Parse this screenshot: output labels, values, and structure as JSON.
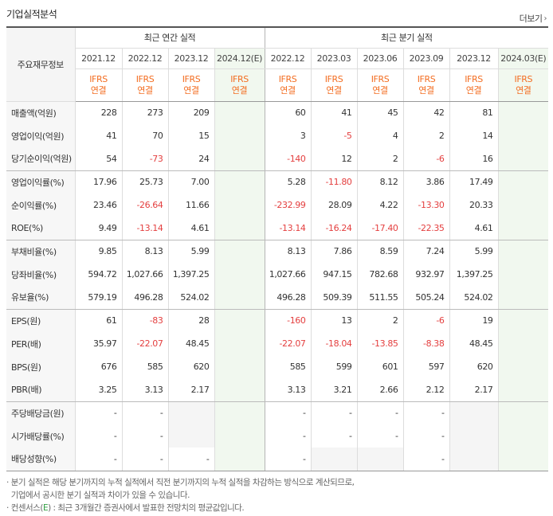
{
  "header": {
    "title": "기업실적분석",
    "more_label": "더보기",
    "more_icon": "chevron-right-icon"
  },
  "table": {
    "corner_label": "주요재무정보",
    "annual_label": "최근 연간 실적",
    "quarter_label": "최근 분기 실적",
    "periods": [
      "2021.12",
      "2022.12",
      "2023.12",
      "2024.12(E)",
      "2022.12",
      "2023.03",
      "2023.06",
      "2023.09",
      "2023.12",
      "2024.03(E)"
    ],
    "standard": {
      "line1": "IFRS",
      "line2": "연결"
    },
    "rows": [
      {
        "label": "매출액(억원)",
        "values": [
          "228",
          "273",
          "209",
          "",
          "60",
          "41",
          "45",
          "42",
          "81",
          ""
        ]
      },
      {
        "label": "영업이익(억원)",
        "values": [
          "41",
          "70",
          "15",
          "",
          "3",
          "-5",
          "4",
          "2",
          "14",
          ""
        ]
      },
      {
        "label": "당기순이익(억원)",
        "values": [
          "54",
          "-73",
          "24",
          "",
          "-140",
          "12",
          "2",
          "-6",
          "16",
          ""
        ]
      },
      {
        "label": "영업이익률(%)",
        "values": [
          "17.96",
          "25.73",
          "7.00",
          "",
          "5.28",
          "-11.80",
          "8.12",
          "3.86",
          "17.49",
          ""
        ]
      },
      {
        "label": "순이익률(%)",
        "values": [
          "23.46",
          "-26.64",
          "11.66",
          "",
          "-232.99",
          "28.09",
          "4.22",
          "-13.30",
          "20.33",
          ""
        ]
      },
      {
        "label": "ROE(%)",
        "values": [
          "9.49",
          "-13.14",
          "4.61",
          "",
          "-13.14",
          "-16.24",
          "-17.40",
          "-22.35",
          "4.61",
          ""
        ]
      },
      {
        "label": "부채비율(%)",
        "values": [
          "9.85",
          "8.13",
          "5.99",
          "",
          "8.13",
          "7.86",
          "8.59",
          "7.24",
          "5.99",
          ""
        ]
      },
      {
        "label": "당좌비율(%)",
        "values": [
          "594.72",
          "1,027.66",
          "1,397.25",
          "",
          "1,027.66",
          "947.15",
          "782.68",
          "932.97",
          "1,397.25",
          ""
        ]
      },
      {
        "label": "유보율(%)",
        "values": [
          "579.19",
          "496.28",
          "524.02",
          "",
          "496.28",
          "509.39",
          "511.55",
          "505.24",
          "524.02",
          ""
        ]
      },
      {
        "label": "EPS(원)",
        "values": [
          "61",
          "-83",
          "28",
          "",
          "-160",
          "13",
          "2",
          "-6",
          "19",
          ""
        ]
      },
      {
        "label": "PER(배)",
        "values": [
          "35.97",
          "-22.07",
          "48.45",
          "",
          "-22.07",
          "-18.04",
          "-13.85",
          "-8.38",
          "48.45",
          ""
        ]
      },
      {
        "label": "BPS(원)",
        "values": [
          "676",
          "585",
          "620",
          "",
          "585",
          "599",
          "601",
          "597",
          "620",
          ""
        ]
      },
      {
        "label": "PBR(배)",
        "values": [
          "3.25",
          "3.13",
          "2.17",
          "",
          "3.13",
          "3.21",
          "2.66",
          "2.12",
          "2.17",
          ""
        ]
      },
      {
        "label": "주당배당금(원)",
        "values": [
          "-",
          "-",
          "",
          "",
          "-",
          "-",
          "-",
          "-",
          "",
          ""
        ]
      },
      {
        "label": "시가배당률(%)",
        "values": [
          "-",
          "-",
          "",
          "",
          "-",
          "-",
          "-",
          "-",
          "",
          ""
        ]
      },
      {
        "label": "배당성향(%)",
        "values": [
          "-",
          "-",
          "-",
          "",
          "-",
          "",
          "",
          "-",
          "",
          ""
        ]
      }
    ]
  },
  "notes": {
    "line1": "분기 실적은 해당 분기까지의 누적 실적에서 직전 분기까지의 누적 실적을 차감하는 방식으로 계산되므로,",
    "line2": "기업에서 공시한 분기 실적과 차이가 있을 수 있습니다.",
    "line3_prefix": "컨센서스(",
    "line3_e": "E",
    "line3_suffix": ") : 최근 3개월간 증권사에서 발표한 전망치의 평균값입니다.",
    "bullet": "·"
  },
  "colors": {
    "negative": "#e43f3f",
    "ifrs": "#f36d21",
    "estimate_bg": "#f1f8ef",
    "empty_bg": "#f5f5f5",
    "estimate_mark": "#2f9e41"
  }
}
